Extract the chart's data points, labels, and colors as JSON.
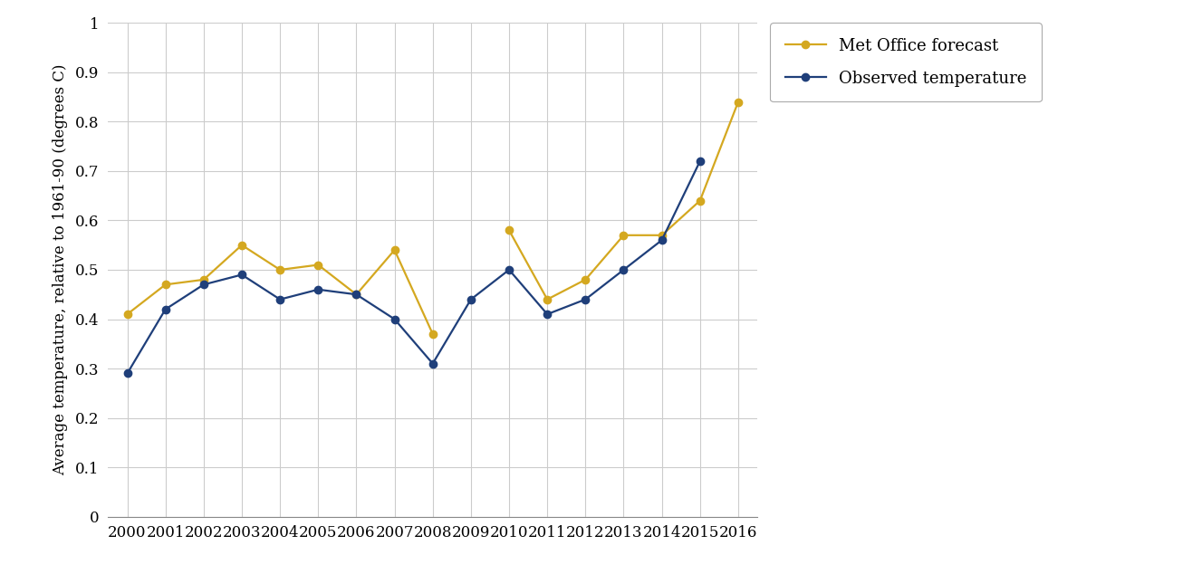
{
  "years": [
    2000,
    2001,
    2002,
    2003,
    2004,
    2005,
    2006,
    2007,
    2008,
    2009,
    2010,
    2011,
    2012,
    2013,
    2014,
    2015,
    2016
  ],
  "met_office": [
    0.41,
    0.47,
    0.48,
    0.55,
    0.5,
    0.51,
    0.45,
    0.54,
    0.37,
    null,
    0.58,
    0.44,
    0.48,
    0.57,
    0.57,
    0.64,
    0.84
  ],
  "observed": [
    0.29,
    0.42,
    0.47,
    0.49,
    0.44,
    0.46,
    0.45,
    0.4,
    0.31,
    0.44,
    0.5,
    0.41,
    0.44,
    0.5,
    0.56,
    0.72,
    null
  ],
  "met_color": "#D4A820",
  "obs_color": "#1F3F7A",
  "background": "#FFFFFF",
  "grid_color": "#CCCCCC",
  "ylabel": "Average temperature, relative to 1961-90 (degrees C)",
  "ylim": [
    0,
    1.0
  ],
  "ytick_labels": [
    "0",
    "0.1",
    "0.2",
    "0.3",
    "0.4",
    "0.5",
    "0.6",
    "0.7",
    "0.8",
    "0.9",
    "1"
  ],
  "ytick_vals": [
    0,
    0.1,
    0.2,
    0.3,
    0.4,
    0.5,
    0.6,
    0.7,
    0.8,
    0.9,
    1.0
  ],
  "legend_met": "Met Office forecast",
  "legend_obs": "Observed temperature",
  "marker_size": 6,
  "line_width": 1.6
}
